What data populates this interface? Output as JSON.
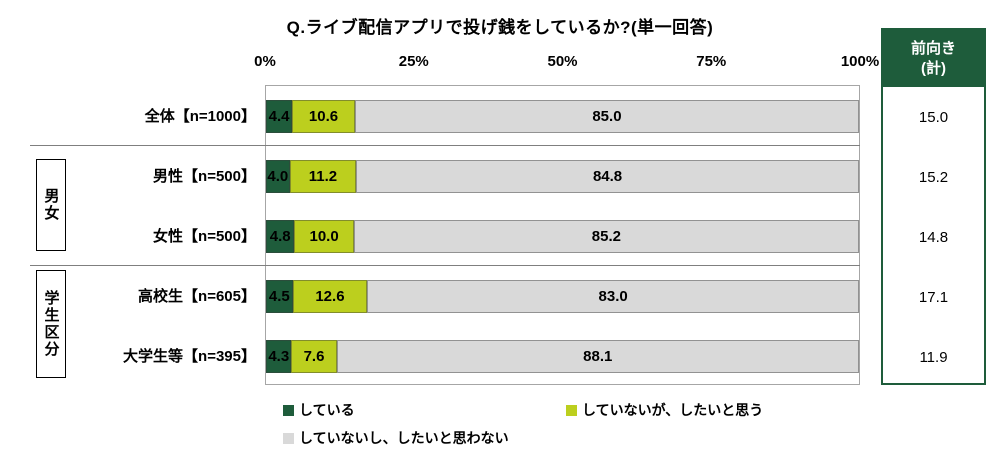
{
  "title": "Q.ライブ配信アプリで投げ銭をしているか?(単一回答)",
  "chart_data": {
    "type": "bar",
    "orientation": "horizontal",
    "stacked": true,
    "xlim": [
      0,
      100
    ],
    "x_ticks": [
      "0%",
      "25%",
      "50%",
      "75%",
      "100%"
    ],
    "categories": [
      "全体【n=1000】",
      "男性【n=500】",
      "女性【n=500】",
      "高校生【n=605】",
      "大学生等【n=395】"
    ],
    "groups": [
      {
        "label": "男女",
        "rows": [
          "男性【n=500】",
          "女性【n=500】"
        ]
      },
      {
        "label": "学生区分",
        "rows": [
          "高校生【n=605】",
          "大学生等【n=395】"
        ]
      }
    ],
    "series": [
      {
        "name": "している",
        "color": "#1e5c3b",
        "values": [
          4.4,
          4.0,
          4.8,
          4.5,
          4.3
        ]
      },
      {
        "name": "していないが、したいと思う",
        "color": "#bccf1e",
        "values": [
          10.6,
          11.2,
          10.0,
          12.6,
          7.6
        ]
      },
      {
        "name": "していないし、したいと思わない",
        "color": "#d9d9d9",
        "values": [
          85.0,
          84.8,
          85.2,
          83.0,
          88.1
        ]
      }
    ],
    "summary": {
      "header_lines": [
        "前向き",
        "(計)"
      ],
      "values": [
        15.0,
        15.2,
        14.8,
        17.1,
        11.9
      ]
    },
    "legend_position": "bottom",
    "grid": false
  },
  "colors": {
    "summary_border": "#1e5c3b",
    "summary_header_bg": "#1e5c3b",
    "summary_header_text": "#ffffff",
    "plot_border": "#a6a6a6"
  }
}
